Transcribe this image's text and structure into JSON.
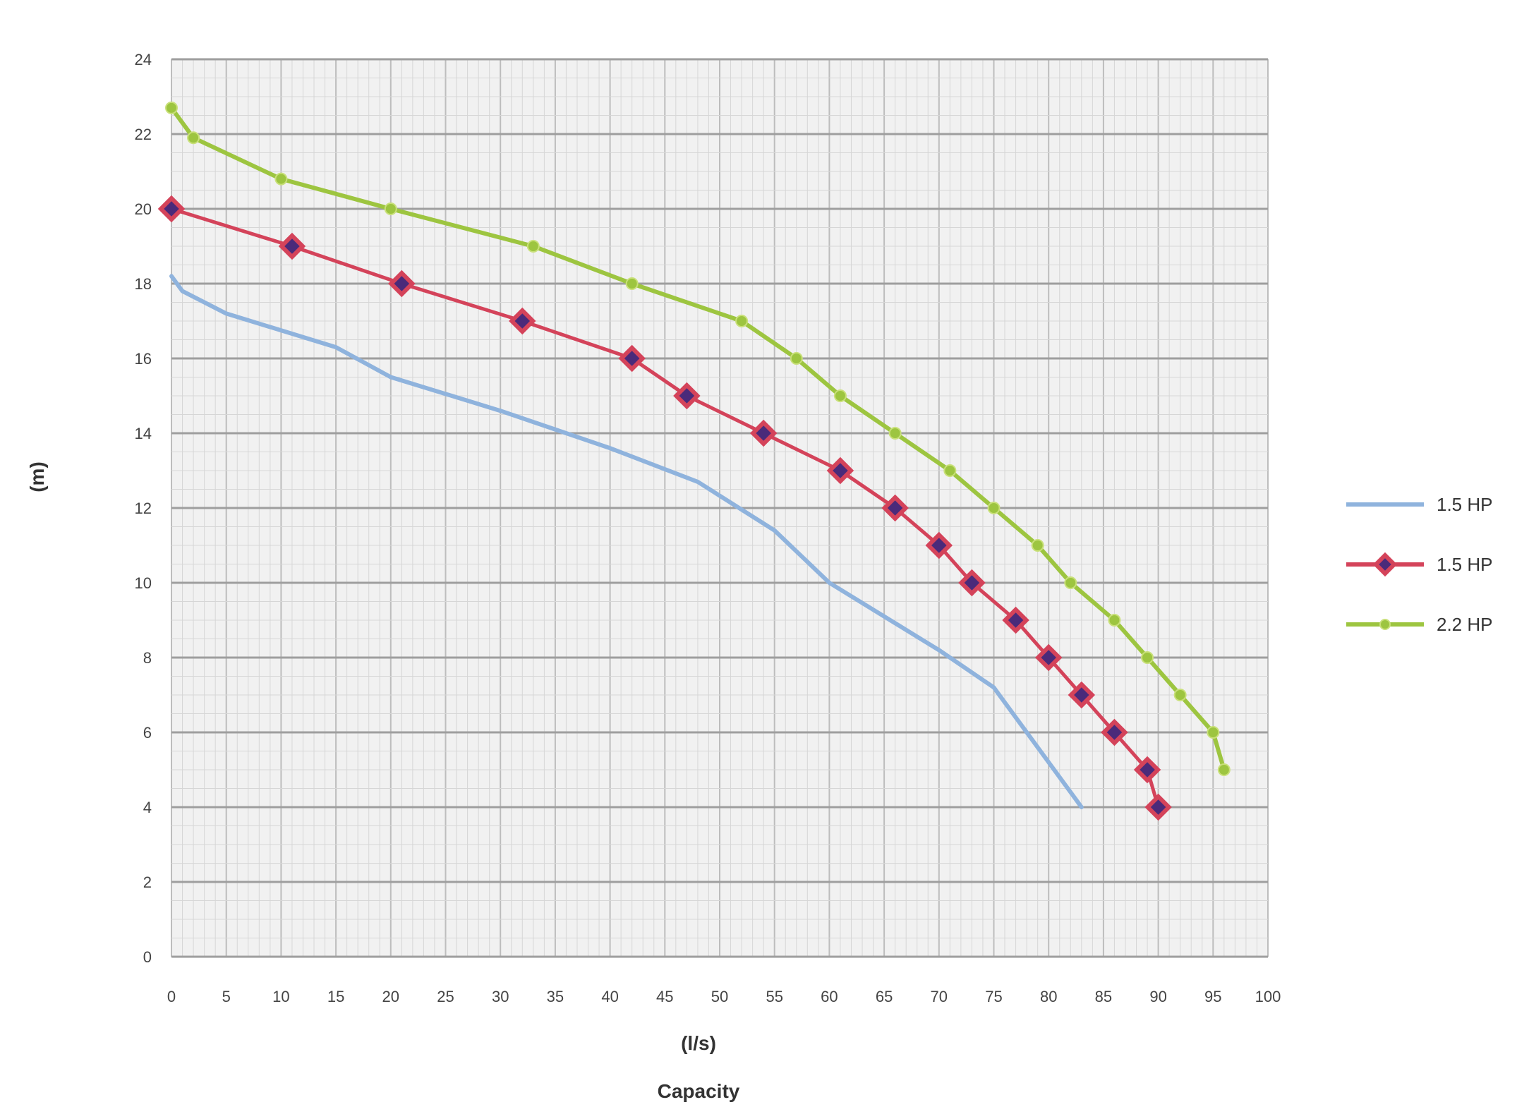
{
  "chart_data": {
    "type": "line",
    "xlabel": "(l/s)",
    "xlabel2": "Capacity",
    "ylabel": "(m)",
    "xlim": [
      0,
      100
    ],
    "ylim": [
      0,
      24
    ],
    "x_ticks": [
      0,
      5,
      10,
      15,
      20,
      25,
      30,
      35,
      40,
      45,
      50,
      55,
      60,
      65,
      70,
      75,
      80,
      85,
      90,
      95,
      100
    ],
    "y_ticks": [
      0,
      2,
      4,
      6,
      8,
      10,
      12,
      14,
      16,
      18,
      20,
      22,
      24
    ],
    "grid": true,
    "legend_position": "right",
    "colors": {
      "gridline": "#bdbdbd",
      "grid_minor": "#d6d6d6",
      "plot_bg": "#f1f1f1"
    },
    "series": [
      {
        "name": "1.5 HP",
        "color": "#8fb3dd",
        "marker": "none",
        "points": [
          [
            0,
            18.2
          ],
          [
            1,
            17.8
          ],
          [
            5,
            17.2
          ],
          [
            15,
            16.3
          ],
          [
            20,
            15.5
          ],
          [
            30,
            14.6
          ],
          [
            40,
            13.6
          ],
          [
            48,
            12.7
          ],
          [
            55,
            11.4
          ],
          [
            60,
            10.0
          ],
          [
            70,
            8.2
          ],
          [
            75,
            7.2
          ],
          [
            80,
            5.2
          ],
          [
            83,
            4.0
          ]
        ]
      },
      {
        "name": "1.5 HP",
        "color": "#d4435a",
        "marker": "diamond",
        "points": [
          [
            0,
            20.0
          ],
          [
            11,
            19.0
          ],
          [
            21,
            18.0
          ],
          [
            32,
            17.0
          ],
          [
            42,
            16.0
          ],
          [
            47,
            15.0
          ],
          [
            54,
            14.0
          ],
          [
            61,
            13.0
          ],
          [
            66,
            12.0
          ],
          [
            70,
            11.0
          ],
          [
            73,
            10.0
          ],
          [
            77,
            9.0
          ],
          [
            80,
            8.0
          ],
          [
            83,
            7.0
          ],
          [
            86,
            6.0
          ],
          [
            89,
            5.0
          ],
          [
            90,
            4.0
          ]
        ]
      },
      {
        "name": "2.2 HP",
        "color": "#9dc540",
        "marker": "circle",
        "points": [
          [
            0,
            22.7
          ],
          [
            2,
            21.9
          ],
          [
            10,
            20.8
          ],
          [
            20,
            20.0
          ],
          [
            33,
            19.0
          ],
          [
            42,
            18.0
          ],
          [
            52,
            17.0
          ],
          [
            57,
            16.0
          ],
          [
            61,
            15.0
          ],
          [
            66,
            14.0
          ],
          [
            71,
            13.0
          ],
          [
            75,
            12.0
          ],
          [
            79,
            11.0
          ],
          [
            82,
            10.0
          ],
          [
            86,
            9.0
          ],
          [
            89,
            8.0
          ],
          [
            92,
            7.0
          ],
          [
            95,
            6.0
          ],
          [
            96,
            5.0
          ]
        ]
      }
    ]
  }
}
